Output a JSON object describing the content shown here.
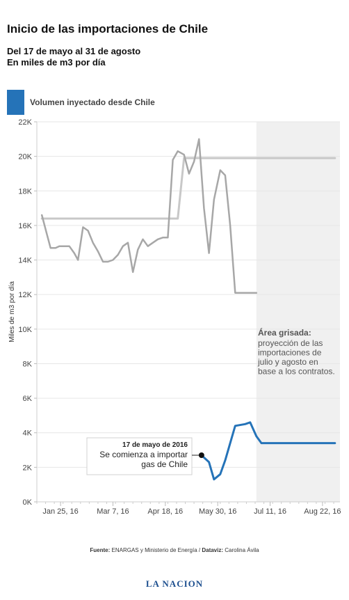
{
  "header": {
    "title": "Inicio de las importaciones de Chile",
    "subtitle_line1": "Del 17 de mayo al 31 de agosto",
    "subtitle_line2": "En miles de m3 por día"
  },
  "legend": {
    "label": "Volumen inyectado desde Chile",
    "color": "#2573b8"
  },
  "colors": {
    "line_gray": "#a7a7a7",
    "line_light": "#c8c8c8",
    "line_blue": "#2573b8",
    "shade": "#f0f0f0"
  },
  "chart_data": {
    "type": "line",
    "ylabel": "Miles de m3 por día",
    "ylim": [
      0,
      22000
    ],
    "yticks": [
      0,
      2000,
      4000,
      6000,
      8000,
      10000,
      12000,
      14000,
      16000,
      18000,
      20000,
      22000
    ],
    "ytick_labels": [
      "0K",
      "2K",
      "4K",
      "6K",
      "8K",
      "10K",
      "12K",
      "14K",
      "16K",
      "18K",
      "20K",
      "22K"
    ],
    "xlim": [
      "2016-01-06",
      "2016-09-05"
    ],
    "xticks": [
      "2016-01-25",
      "2016-03-07",
      "2016-04-18",
      "2016-05-30",
      "2016-07-11",
      "2016-08-22"
    ],
    "xtick_labels": [
      "Jan 25, 16",
      "Mar 7, 16",
      "Apr 18, 16",
      "May 30, 16",
      "Jul 11, 16",
      "Aug 22, 16"
    ],
    "shaded_region": {
      "start": "2016-06-30",
      "end": "2016-09-05"
    },
    "series": [
      {
        "x": [
          "2016-01-10",
          "2016-01-14",
          "2016-01-17",
          "2016-01-21",
          "2016-01-24",
          "2016-01-28",
          "2016-02-01",
          "2016-02-05",
          "2016-02-08",
          "2016-02-12",
          "2016-02-16",
          "2016-02-20",
          "2016-02-24",
          "2016-02-28",
          "2016-03-03",
          "2016-03-07",
          "2016-03-11",
          "2016-03-15",
          "2016-03-19",
          "2016-03-23",
          "2016-03-27",
          "2016-03-31",
          "2016-04-04",
          "2016-04-08",
          "2016-04-12",
          "2016-04-16",
          "2016-04-20",
          "2016-04-24",
          "2016-04-28",
          "2016-05-03",
          "2016-05-07",
          "2016-05-11",
          "2016-05-15",
          "2016-05-19",
          "2016-05-23",
          "2016-05-27",
          "2016-06-01",
          "2016-06-05",
          "2016-06-09",
          "2016-06-13",
          "2016-06-17",
          "2016-06-21",
          "2016-06-25",
          "2016-06-30"
        ],
        "values": [
          16600,
          15500,
          14700,
          14700,
          14800,
          14800,
          14800,
          14400,
          14000,
          15900,
          15700,
          15000,
          14500,
          13900,
          13900,
          14000,
          14300,
          14800,
          15000,
          13300,
          14600,
          15200,
          14800,
          15000,
          15200,
          15300,
          15300,
          19800,
          20300,
          20100,
          19000,
          19700,
          21000,
          17000,
          14400,
          17500,
          19200,
          18900,
          16000,
          12100,
          12100,
          12100,
          12100,
          12100
        ]
      },
      {
        "x": [
          "2016-01-10",
          "2016-04-28",
          "2016-05-03",
          "2016-09-01"
        ],
        "values": [
          16400,
          16400,
          19900,
          19900
        ]
      },
      {
        "name": "Volumen inyectado desde Chile",
        "x": [
          "2016-05-17",
          "2016-05-23",
          "2016-05-27",
          "2016-06-01",
          "2016-06-05",
          "2016-06-13",
          "2016-06-21",
          "2016-06-25",
          "2016-06-30",
          "2016-07-04",
          "2016-07-11",
          "2016-08-01",
          "2016-09-01"
        ],
        "values": [
          2700,
          2300,
          1300,
          1600,
          2400,
          4400,
          4500,
          4600,
          3800,
          3400,
          3400,
          3400,
          3400
        ]
      }
    ],
    "annotations": [
      {
        "x": "2016-05-17",
        "y": 2700,
        "title": "17 de mayo de 2016",
        "lines": [
          "Se comienza a importar",
          "gas de Chile"
        ]
      },
      {
        "title": "Área grisada:",
        "lines": [
          "proyección de las",
          "importaciones de",
          "julio y agosto en",
          "base a los contratos."
        ]
      }
    ]
  },
  "footer": {
    "source_label": "Fuente:",
    "source_text": " ENARGAS y Ministerio de Energía  /  ",
    "dataviz_label": "Dataviz:",
    "dataviz_text": " Carolina Ávila",
    "brand": "LA NACION"
  }
}
